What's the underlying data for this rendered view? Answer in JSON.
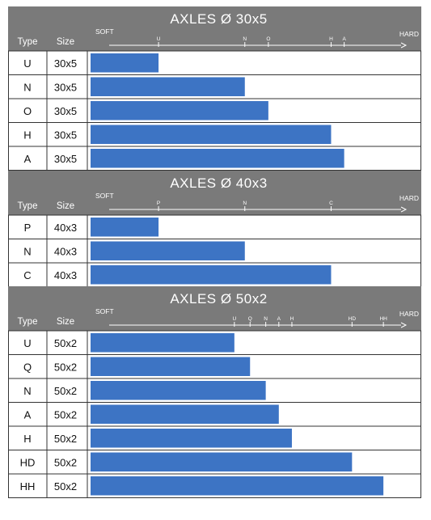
{
  "chart_data": [
    {
      "type": "bar",
      "title": "AXLES Ø 30x5",
      "col_type": "Type",
      "col_size": "Size",
      "scale_left": "SOFT",
      "scale_right": "HARD",
      "rows": [
        {
          "type": "U",
          "size": "30x5",
          "value": 26
        },
        {
          "type": "N",
          "size": "30x5",
          "value": 59
        },
        {
          "type": "O",
          "size": "30x5",
          "value": 68
        },
        {
          "type": "H",
          "size": "30x5",
          "value": 92
        },
        {
          "type": "A",
          "size": "30x5",
          "value": 97
        }
      ]
    },
    {
      "type": "bar",
      "title": "AXLES Ø 40x3",
      "col_type": "Type",
      "col_size": "Size",
      "scale_left": "SOFT",
      "scale_right": "HARD",
      "rows": [
        {
          "type": "P",
          "size": "40x3",
          "value": 26
        },
        {
          "type": "N",
          "size": "40x3",
          "value": 59
        },
        {
          "type": "C",
          "size": "40x3",
          "value": 92
        }
      ]
    },
    {
      "type": "bar",
      "title": "AXLES Ø 50x2",
      "col_type": "Type",
      "col_size": "Size",
      "scale_left": "SOFT",
      "scale_right": "HARD",
      "rows": [
        {
          "type": "U",
          "size": "50x2",
          "value": 55
        },
        {
          "type": "Q",
          "size": "50x2",
          "value": 61
        },
        {
          "type": "N",
          "size": "50x2",
          "value": 67
        },
        {
          "type": "A",
          "size": "50x2",
          "value": 72
        },
        {
          "type": "H",
          "size": "50x2",
          "value": 77
        },
        {
          "type": "HD",
          "size": "50x2",
          "value": 100
        },
        {
          "type": "HH",
          "size": "50x2",
          "value": 112
        }
      ]
    }
  ],
  "scale_range": [
    0,
    120
  ],
  "colors": {
    "header": "#7a7a7a",
    "bar": "#3d74c4",
    "grid": "#333333",
    "background": "#ffffff"
  }
}
